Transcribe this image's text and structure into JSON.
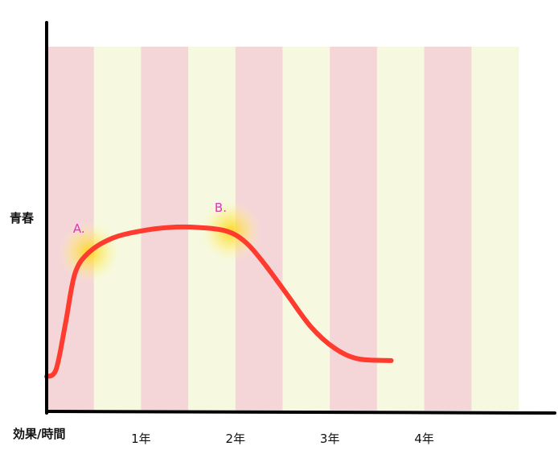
{
  "chart_data": {
    "type": "line",
    "ylabel": "青春",
    "xlabel": "効果/時間",
    "x_ticks": [
      {
        "label": "1年",
        "x": 1
      },
      {
        "label": "2年",
        "x": 2
      },
      {
        "label": "3年",
        "x": 3
      },
      {
        "label": "4年",
        "x": 4
      }
    ],
    "xlim": [
      0,
      5
    ],
    "ylim": [
      0,
      10
    ],
    "series": [
      {
        "color": "#ff3b30",
        "points": [
          [
            0.0,
            3.0
          ],
          [
            0.1,
            3.2
          ],
          [
            0.2,
            4.5
          ],
          [
            0.3,
            5.9
          ],
          [
            0.45,
            6.5
          ],
          [
            0.7,
            6.9
          ],
          [
            1.0,
            7.1
          ],
          [
            1.3,
            7.2
          ],
          [
            1.6,
            7.2
          ],
          [
            1.9,
            7.1
          ],
          [
            2.1,
            6.8
          ],
          [
            2.3,
            6.2
          ],
          [
            2.55,
            5.3
          ],
          [
            2.8,
            4.4
          ],
          [
            3.05,
            3.8
          ],
          [
            3.3,
            3.5
          ],
          [
            3.65,
            3.45
          ]
        ]
      }
    ],
    "annotations": [
      {
        "label": "A.",
        "x": 0.45,
        "y": 6.5
      },
      {
        "label": "B.",
        "x": 1.95,
        "y": 7.1
      }
    ],
    "background_bands": {
      "count": 10,
      "colors": [
        "#f5d6d8",
        "#f6f9df"
      ]
    }
  }
}
